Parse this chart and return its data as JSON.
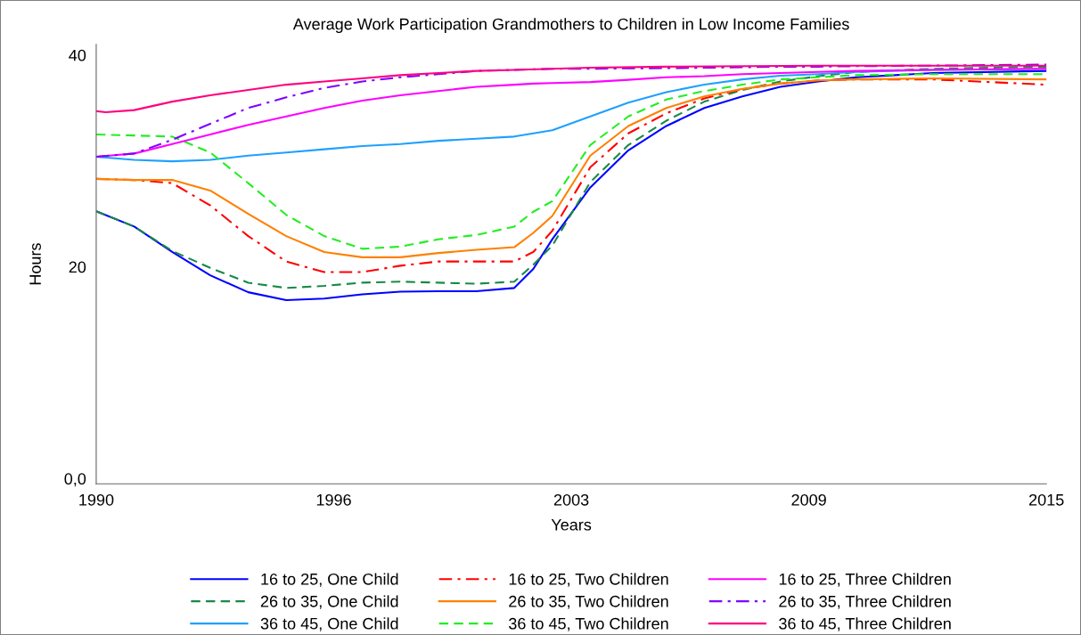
{
  "chart_data": {
    "type": "line",
    "title": "Average Work Participation Grandmothers to Children in Low Income Families",
    "xlabel": "Years",
    "ylabel": "Hours",
    "x": [
      1990,
      1991,
      1992,
      1993,
      1994,
      1995,
      1996,
      1997,
      1998,
      1999,
      2000,
      2001,
      2001.5,
      2002,
      2003,
      2004,
      2005,
      2006,
      2007,
      2008,
      2009,
      2010,
      2012,
      2015
    ],
    "xlim": [
      1990,
      2015
    ],
    "xticks": [
      1990,
      {
        "value": 1996.25,
        "label": "1996"
      },
      {
        "value": 2002.5,
        "label": "2003"
      },
      {
        "value": 2008.75,
        "label": "2009"
      },
      2015
    ],
    "ylim": [
      -0.5,
      41
    ],
    "yticks": [
      {
        "value": 0,
        "label": "0,0"
      },
      20,
      40
    ],
    "grid": false,
    "legend": "bottom",
    "marker": "none",
    "series": [
      {
        "name": "16 to 25, One Child",
        "color": "#0000ff",
        "line_style": "solid",
        "values": [
          25.25,
          23.8,
          21.4,
          19.2,
          17.6,
          16.85,
          17.0,
          17.4,
          17.65,
          17.7,
          17.7,
          18.0,
          19.8,
          22.6,
          27.5,
          31.0,
          33.3,
          35.0,
          36.1,
          37.0,
          37.5,
          37.9,
          38.3,
          38.5
        ]
      },
      {
        "name": "26 to 35, One Child",
        "color": "#178a47",
        "line_style": "dashed",
        "values": [
          25.25,
          23.8,
          21.5,
          19.9,
          18.5,
          18.0,
          18.2,
          18.5,
          18.6,
          18.5,
          18.4,
          18.6,
          20.2,
          22.0,
          28.0,
          31.5,
          33.8,
          35.6,
          36.7,
          37.5,
          38.0,
          38.4,
          38.7,
          38.9
        ]
      },
      {
        "name": "36 to 45, One Child",
        "color": "#1ea0ff",
        "line_style": "solid",
        "values": [
          30.4,
          30.1,
          29.96,
          30.1,
          30.5,
          30.8,
          31.1,
          31.4,
          31.6,
          31.9,
          32.1,
          32.3,
          32.6,
          32.9,
          34.2,
          35.5,
          36.5,
          37.2,
          37.7,
          38.05,
          38.2,
          38.4,
          38.6,
          38.7
        ]
      },
      {
        "name": "16 to 25, Two Children",
        "color": "#ff0000",
        "line_style": "dashdot",
        "values": [
          28.3,
          28.2,
          27.9,
          25.8,
          22.9,
          20.5,
          19.5,
          19.5,
          20.1,
          20.5,
          20.5,
          20.5,
          21.4,
          23.4,
          29.4,
          32.6,
          34.5,
          35.9,
          36.8,
          37.3,
          37.6,
          37.7,
          37.7,
          37.2
        ]
      },
      {
        "name": "26 to 35, Two Children",
        "color": "#ff8000",
        "line_style": "solid",
        "values": [
          28.3,
          28.2,
          28.2,
          27.2,
          25.0,
          22.9,
          21.4,
          20.9,
          20.9,
          21.3,
          21.6,
          21.85,
          23.2,
          24.8,
          30.5,
          33.3,
          35.0,
          36.1,
          36.8,
          37.3,
          37.6,
          37.7,
          37.8,
          37.7
        ]
      },
      {
        "name": "36 to 45, Two Children",
        "color": "#22ee22",
        "line_style": "dashed",
        "values": [
          32.5,
          32.4,
          32.3,
          30.8,
          27.9,
          24.9,
          22.9,
          21.7,
          21.9,
          22.6,
          23.0,
          23.8,
          25.2,
          26.2,
          31.5,
          34.2,
          35.8,
          36.6,
          37.2,
          37.7,
          37.9,
          38.1,
          38.2,
          38.2
        ]
      },
      {
        "name": "16 to 25, Three Children",
        "color": "#ff00ff",
        "line_style": "solid",
        "values": [
          30.4,
          30.7,
          31.6,
          32.5,
          33.4,
          34.2,
          35.0,
          35.7,
          36.2,
          36.6,
          37.0,
          37.2,
          37.3,
          37.35,
          37.45,
          37.66,
          37.9,
          38.0,
          38.2,
          38.3,
          38.4,
          38.5,
          38.6,
          38.7
        ]
      },
      {
        "name": "26 to 35, Three Children",
        "color": "#8000ff",
        "line_style": "dashdot",
        "values": [
          30.4,
          30.7,
          32.0,
          33.5,
          35.0,
          36.0,
          36.9,
          37.5,
          37.9,
          38.2,
          38.5,
          38.6,
          38.65,
          38.7,
          38.7,
          38.75,
          38.76,
          38.8,
          38.85,
          38.9,
          38.9,
          38.95,
          39.0,
          39.1
        ]
      },
      {
        "name": "36 to 45, Three Children",
        "color": "#ff0080",
        "line_style": "solid",
        "x": [
          1990,
          1990.25,
          1991,
          1992,
          1993,
          1994,
          1995,
          1996,
          1997,
          1998,
          1999,
          2000,
          2001,
          2002,
          2003,
          2005,
          2009,
          2015
        ],
        "values": [
          34.7,
          34.6,
          34.8,
          35.6,
          36.2,
          36.7,
          37.2,
          37.5,
          37.8,
          38.1,
          38.3,
          38.5,
          38.6,
          38.7,
          38.8,
          38.9,
          39.0,
          39.0
        ]
      }
    ]
  }
}
